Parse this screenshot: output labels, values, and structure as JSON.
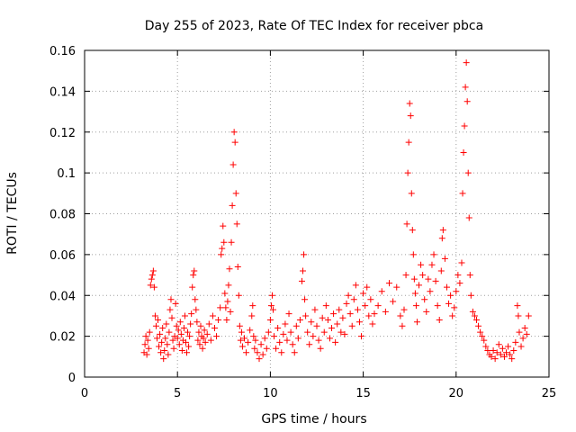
{
  "chart_data": {
    "type": "scatter",
    "title": "Day 255 of 2023, Rate Of TEC Index for receiver pbca",
    "xlabel": "GPS time / hours",
    "ylabel": "ROTI / TECUs",
    "xlim": [
      0,
      25
    ],
    "ylim": [
      0,
      0.16
    ],
    "x_ticks": [
      0,
      5,
      10,
      15,
      20,
      25
    ],
    "x_tick_labels": [
      "0",
      "5",
      "10",
      "15",
      "20",
      "25"
    ],
    "y_ticks": [
      0,
      0.02,
      0.04,
      0.06,
      0.08,
      0.1,
      0.12,
      0.14,
      0.16
    ],
    "y_tick_labels": [
      "0",
      "0.02",
      "0.04",
      "0.06",
      "0.08",
      "0.1",
      "0.12",
      "0.14",
      "0.16"
    ],
    "grid": true,
    "marker": "+",
    "color": "#ff0000",
    "series": [
      {
        "name": "ROTI",
        "points": [
          [
            3.2,
            0.012
          ],
          [
            3.25,
            0.016
          ],
          [
            3.3,
            0.02
          ],
          [
            3.35,
            0.011
          ],
          [
            3.4,
            0.018
          ],
          [
            3.45,
            0.014
          ],
          [
            3.5,
            0.022
          ],
          [
            3.55,
            0.045
          ],
          [
            3.6,
            0.048
          ],
          [
            3.65,
            0.05
          ],
          [
            3.7,
            0.052
          ],
          [
            3.75,
            0.044
          ],
          [
            3.8,
            0.03
          ],
          [
            3.85,
            0.025
          ],
          [
            3.9,
            0.019
          ],
          [
            3.95,
            0.028
          ],
          [
            4.0,
            0.015
          ],
          [
            4.05,
            0.021
          ],
          [
            4.1,
            0.012
          ],
          [
            4.15,
            0.017
          ],
          [
            4.2,
            0.024
          ],
          [
            4.25,
            0.009
          ],
          [
            4.3,
            0.013
          ],
          [
            4.35,
            0.019
          ],
          [
            4.4,
            0.026
          ],
          [
            4.45,
            0.016
          ],
          [
            4.5,
            0.011
          ],
          [
            4.55,
            0.022
          ],
          [
            4.6,
            0.033
          ],
          [
            4.65,
            0.038
          ],
          [
            4.7,
            0.029
          ],
          [
            4.75,
            0.018
          ],
          [
            4.8,
            0.014
          ],
          [
            4.85,
            0.02
          ],
          [
            4.9,
            0.036
          ],
          [
            4.95,
            0.025
          ],
          [
            5.0,
            0.019
          ],
          [
            5.05,
            0.023
          ],
          [
            5.1,
            0.016
          ],
          [
            5.15,
            0.027
          ],
          [
            5.2,
            0.021
          ],
          [
            5.25,
            0.013
          ],
          [
            5.3,
            0.018
          ],
          [
            5.35,
            0.024
          ],
          [
            5.4,
            0.03
          ],
          [
            5.45,
            0.017
          ],
          [
            5.5,
            0.012
          ],
          [
            5.55,
            0.022
          ],
          [
            5.6,
            0.015
          ],
          [
            5.65,
            0.02
          ],
          [
            5.7,
            0.026
          ],
          [
            5.75,
            0.031
          ],
          [
            5.8,
            0.044
          ],
          [
            5.85,
            0.05
          ],
          [
            5.9,
            0.052
          ],
          [
            5.95,
            0.038
          ],
          [
            6.0,
            0.033
          ],
          [
            6.05,
            0.027
          ],
          [
            6.1,
            0.018
          ],
          [
            6.15,
            0.022
          ],
          [
            6.2,
            0.016
          ],
          [
            6.25,
            0.025
          ],
          [
            6.3,
            0.02
          ],
          [
            6.35,
            0.014
          ],
          [
            6.4,
            0.019
          ],
          [
            6.45,
            0.023
          ],
          [
            6.5,
            0.017
          ],
          [
            6.6,
            0.021
          ],
          [
            6.7,
            0.026
          ],
          [
            6.8,
            0.018
          ],
          [
            6.9,
            0.03
          ],
          [
            7.0,
            0.024
          ],
          [
            7.1,
            0.02
          ],
          [
            7.2,
            0.028
          ],
          [
            7.3,
            0.034
          ],
          [
            7.35,
            0.06
          ],
          [
            7.4,
            0.063
          ],
          [
            7.45,
            0.074
          ],
          [
            7.5,
            0.066
          ],
          [
            7.55,
            0.041
          ],
          [
            7.6,
            0.034
          ],
          [
            7.65,
            0.028
          ],
          [
            7.7,
            0.037
          ],
          [
            7.75,
            0.045
          ],
          [
            7.8,
            0.053
          ],
          [
            7.85,
            0.032
          ],
          [
            7.9,
            0.066
          ],
          [
            7.95,
            0.084
          ],
          [
            8.0,
            0.104
          ],
          [
            8.05,
            0.12
          ],
          [
            8.1,
            0.115
          ],
          [
            8.15,
            0.09
          ],
          [
            8.2,
            0.075
          ],
          [
            8.25,
            0.054
          ],
          [
            8.3,
            0.04
          ],
          [
            8.35,
            0.025
          ],
          [
            8.4,
            0.018
          ],
          [
            8.45,
            0.022
          ],
          [
            8.5,
            0.015
          ],
          [
            8.6,
            0.019
          ],
          [
            8.7,
            0.012
          ],
          [
            8.8,
            0.017
          ],
          [
            8.9,
            0.023
          ],
          [
            9.0,
            0.03
          ],
          [
            9.05,
            0.035
          ],
          [
            9.1,
            0.02
          ],
          [
            9.15,
            0.014
          ],
          [
            9.2,
            0.018
          ],
          [
            9.3,
            0.012
          ],
          [
            9.4,
            0.009
          ],
          [
            9.5,
            0.016
          ],
          [
            9.6,
            0.011
          ],
          [
            9.7,
            0.019
          ],
          [
            9.8,
            0.014
          ],
          [
            9.9,
            0.022
          ],
          [
            10.0,
            0.028
          ],
          [
            10.05,
            0.035
          ],
          [
            10.1,
            0.04
          ],
          [
            10.15,
            0.033
          ],
          [
            10.2,
            0.02
          ],
          [
            10.3,
            0.014
          ],
          [
            10.4,
            0.024
          ],
          [
            10.5,
            0.017
          ],
          [
            10.6,
            0.012
          ],
          [
            10.7,
            0.021
          ],
          [
            10.8,
            0.026
          ],
          [
            10.9,
            0.018
          ],
          [
            11.0,
            0.031
          ],
          [
            11.1,
            0.022
          ],
          [
            11.2,
            0.016
          ],
          [
            11.3,
            0.012
          ],
          [
            11.4,
            0.025
          ],
          [
            11.5,
            0.019
          ],
          [
            11.6,
            0.028
          ],
          [
            11.7,
            0.047
          ],
          [
            11.75,
            0.052
          ],
          [
            11.8,
            0.06
          ],
          [
            11.85,
            0.038
          ],
          [
            11.9,
            0.03
          ],
          [
            12.0,
            0.022
          ],
          [
            12.1,
            0.016
          ],
          [
            12.2,
            0.027
          ],
          [
            12.3,
            0.02
          ],
          [
            12.4,
            0.033
          ],
          [
            12.5,
            0.025
          ],
          [
            12.6,
            0.018
          ],
          [
            12.7,
            0.014
          ],
          [
            12.8,
            0.029
          ],
          [
            12.9,
            0.022
          ],
          [
            13.0,
            0.035
          ],
          [
            13.1,
            0.028
          ],
          [
            13.2,
            0.019
          ],
          [
            13.3,
            0.024
          ],
          [
            13.4,
            0.031
          ],
          [
            13.5,
            0.017
          ],
          [
            13.6,
            0.026
          ],
          [
            13.7,
            0.033
          ],
          [
            13.8,
            0.022
          ],
          [
            13.9,
            0.029
          ],
          [
            14.0,
            0.021
          ],
          [
            14.1,
            0.036
          ],
          [
            14.2,
            0.04
          ],
          [
            14.3,
            0.031
          ],
          [
            14.4,
            0.025
          ],
          [
            14.5,
            0.038
          ],
          [
            14.6,
            0.045
          ],
          [
            14.7,
            0.033
          ],
          [
            14.8,
            0.027
          ],
          [
            14.9,
            0.02
          ],
          [
            15.0,
            0.041
          ],
          [
            15.1,
            0.035
          ],
          [
            15.2,
            0.044
          ],
          [
            15.3,
            0.03
          ],
          [
            15.4,
            0.038
          ],
          [
            15.5,
            0.026
          ],
          [
            15.6,
            0.031
          ],
          [
            15.8,
            0.035
          ],
          [
            16.0,
            0.042
          ],
          [
            16.2,
            0.032
          ],
          [
            16.4,
            0.046
          ],
          [
            16.6,
            0.037
          ],
          [
            16.8,
            0.044
          ],
          [
            17.0,
            0.03
          ],
          [
            17.1,
            0.025
          ],
          [
            17.2,
            0.033
          ],
          [
            17.3,
            0.05
          ],
          [
            17.35,
            0.075
          ],
          [
            17.4,
            0.1
          ],
          [
            17.45,
            0.115
          ],
          [
            17.5,
            0.134
          ],
          [
            17.55,
            0.128
          ],
          [
            17.6,
            0.09
          ],
          [
            17.65,
            0.072
          ],
          [
            17.7,
            0.06
          ],
          [
            17.75,
            0.048
          ],
          [
            17.8,
            0.041
          ],
          [
            17.85,
            0.035
          ],
          [
            17.9,
            0.027
          ],
          [
            18.0,
            0.045
          ],
          [
            18.1,
            0.055
          ],
          [
            18.2,
            0.05
          ],
          [
            18.3,
            0.038
          ],
          [
            18.4,
            0.032
          ],
          [
            18.5,
            0.048
          ],
          [
            18.6,
            0.042
          ],
          [
            18.7,
            0.055
          ],
          [
            18.8,
            0.06
          ],
          [
            18.9,
            0.047
          ],
          [
            19.0,
            0.035
          ],
          [
            19.1,
            0.028
          ],
          [
            19.2,
            0.052
          ],
          [
            19.25,
            0.068
          ],
          [
            19.3,
            0.072
          ],
          [
            19.4,
            0.058
          ],
          [
            19.5,
            0.044
          ],
          [
            19.6,
            0.036
          ],
          [
            19.7,
            0.04
          ],
          [
            19.8,
            0.03
          ],
          [
            19.9,
            0.034
          ],
          [
            20.0,
            0.042
          ],
          [
            20.1,
            0.05
          ],
          [
            20.2,
            0.046
          ],
          [
            20.3,
            0.056
          ],
          [
            20.35,
            0.09
          ],
          [
            20.4,
            0.11
          ],
          [
            20.45,
            0.123
          ],
          [
            20.5,
            0.142
          ],
          [
            20.55,
            0.154
          ],
          [
            20.6,
            0.135
          ],
          [
            20.65,
            0.1
          ],
          [
            20.7,
            0.078
          ],
          [
            20.75,
            0.05
          ],
          [
            20.8,
            0.04
          ],
          [
            20.9,
            0.032
          ],
          [
            21.0,
            0.03
          ],
          [
            21.1,
            0.028
          ],
          [
            21.2,
            0.025
          ],
          [
            21.3,
            0.022
          ],
          [
            21.4,
            0.02
          ],
          [
            21.5,
            0.018
          ],
          [
            21.6,
            0.015
          ],
          [
            21.7,
            0.013
          ],
          [
            21.8,
            0.011
          ],
          [
            21.9,
            0.01
          ],
          [
            22.0,
            0.013
          ],
          [
            22.1,
            0.009
          ],
          [
            22.2,
            0.012
          ],
          [
            22.3,
            0.016
          ],
          [
            22.4,
            0.011
          ],
          [
            22.5,
            0.014
          ],
          [
            22.6,
            0.01
          ],
          [
            22.7,
            0.012
          ],
          [
            22.8,
            0.015
          ],
          [
            22.9,
            0.011
          ],
          [
            23.0,
            0.009
          ],
          [
            23.1,
            0.013
          ],
          [
            23.2,
            0.017
          ],
          [
            23.3,
            0.035
          ],
          [
            23.35,
            0.03
          ],
          [
            23.4,
            0.022
          ],
          [
            23.5,
            0.015
          ],
          [
            23.6,
            0.019
          ],
          [
            23.7,
            0.024
          ],
          [
            23.8,
            0.021
          ],
          [
            23.9,
            0.03
          ]
        ]
      }
    ]
  }
}
